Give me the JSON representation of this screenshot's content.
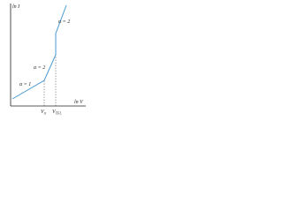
{
  "axes": {
    "y_label": "ln I",
    "x_label": "ln V"
  },
  "segments": [
    {
      "label": "α = 1"
    },
    {
      "label": "α = 2"
    },
    {
      "label": "α = 2"
    }
  ],
  "markers": [
    {
      "base": "V",
      "sub": "tr"
    },
    {
      "base": "V",
      "sub": "TFL"
    }
  ]
}
